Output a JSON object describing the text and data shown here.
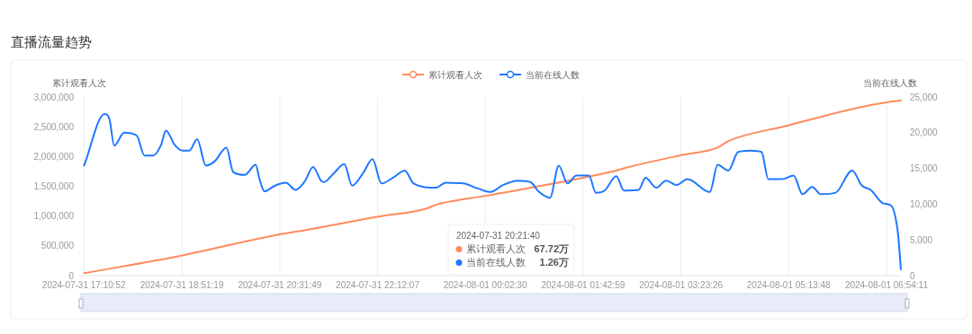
{
  "chart_data": {
    "type": "line",
    "title": "直播流量趋势",
    "ylabel": "累计观看人次",
    "y2label": "当前在线人数",
    "legend": "top",
    "grid": "x",
    "xlim": [
      "2024-07-31T17:06",
      "2024-08-01T07:09"
    ],
    "xticks": [
      {
        "value": "2024-07-31T17:10:52",
        "label": "2024-07-31 17:10:52"
      },
      {
        "value": "2024-07-31T18:51:19",
        "label": "2024-07-31 18:51:19"
      },
      {
        "value": "2024-07-31T20:31:49",
        "label": "2024-07-31 20:31:49"
      },
      {
        "value": "2024-07-31T22:12:07",
        "label": "2024-07-31 22:12:07"
      },
      {
        "value": "2024-08-01T00:02:30",
        "label": "2024-08-01 00:02:30"
      },
      {
        "value": "2024-08-01T01:42:59",
        "label": "2024-08-01 01:42:59"
      },
      {
        "value": "2024-08-01T03:23:26",
        "label": "2024-08-01 03:23:26"
      },
      {
        "value": "2024-08-01T05:13:48",
        "label": "2024-08-01 05:13:48"
      },
      {
        "value": "2024-08-01T06:54:11",
        "label": "2024-08-01 06:54:11"
      }
    ],
    "ylim": [
      0,
      3000000
    ],
    "yticks": [
      0,
      {
        "value": 500000,
        "label": "500,000"
      },
      {
        "value": 1000000,
        "label": "1,000,000"
      },
      {
        "value": 1500000,
        "label": "1,500,000"
      },
      {
        "value": 2000000,
        "label": "2,000,000"
      },
      {
        "value": 2500000,
        "label": "2,500,000"
      },
      {
        "value": 3000000,
        "label": "3,000,000"
      }
    ],
    "y2lim": [
      0,
      25000
    ],
    "y2ticks": [
      0,
      {
        "value": 5000,
        "label": "5,000"
      },
      {
        "value": 10000,
        "label": "10,000"
      },
      {
        "value": 15000,
        "label": "15,000"
      },
      {
        "value": 20000,
        "label": "20,000"
      },
      {
        "value": 25000,
        "label": "25,000"
      }
    ],
    "series": [
      {
        "name": "累计观看人次",
        "color": "#ff8a5c",
        "x": [
          "2024-07-31T17:11",
          "2024-07-31T18:52",
          "2024-07-31T20:27",
          "2024-07-31T20:57",
          "2024-07-31T22:13",
          "2024-07-31T23:01",
          "2024-07-31T23:14",
          "2024-08-01T00:03",
          "2024-08-01T02:11",
          "2024-08-01T02:29",
          "2024-08-01T03:23",
          "2024-08-01T04:01",
          "2024-08-01T04:12",
          "2024-08-01T05:13",
          "2024-08-01T06:20",
          "2024-08-01T06:54",
          "2024-08-01T07:09"
        ],
        "values": [
          40000,
          340000,
          680000,
          760000,
          990000,
          1120000,
          1200000,
          1340000,
          1740000,
          1820000,
          2020000,
          2150000,
          2260000,
          2520000,
          2800000,
          2910000,
          2940000
        ]
      },
      {
        "name": "当前在线人数",
        "color": "#1e78ff",
        "axis": "y2",
        "x": [
          "2024-07-31T17:11",
          "2024-07-31T17:32",
          "2024-07-31T17:37",
          "2024-07-31T17:42",
          "2024-07-31T17:52",
          "2024-07-31T18:05",
          "2024-07-31T18:13",
          "2024-07-31T18:22",
          "2024-07-31T18:30",
          "2024-07-31T18:35",
          "2024-07-31T18:44",
          "2024-07-31T18:52",
          "2024-07-31T18:59",
          "2024-07-31T19:07",
          "2024-07-31T19:16",
          "2024-07-31T19:25",
          "2024-07-31T19:37",
          "2024-07-31T19:44",
          "2024-07-31T19:56",
          "2024-07-31T20:07",
          "2024-07-31T20:11",
          "2024-07-31T20:16",
          "2024-07-31T20:27",
          "2024-07-31T20:38",
          "2024-07-31T20:48",
          "2024-07-31T20:57",
          "2024-07-31T21:06",
          "2024-07-31T21:14",
          "2024-07-31T21:17",
          "2024-07-31T21:27",
          "2024-07-31T21:38",
          "2024-07-31T21:46",
          "2024-07-31T21:57",
          "2024-07-31T22:07",
          "2024-07-31T22:16",
          "2024-07-31T22:28",
          "2024-07-31T22:40",
          "2024-07-31T22:49",
          "2024-07-31T23:12",
          "2024-07-31T23:22",
          "2024-07-31T23:40",
          "2024-07-31T23:55",
          "2024-08-01T00:08",
          "2024-08-01T00:21",
          "2024-08-01T00:36",
          "2024-08-01T00:49",
          "2024-08-01T00:57",
          "2024-08-01T01:09",
          "2024-08-01T01:18",
          "2024-08-01T01:27",
          "2024-08-01T01:36",
          "2024-08-01T01:49",
          "2024-08-01T01:56",
          "2024-08-01T02:05",
          "2024-08-01T02:17",
          "2024-08-01T02:25",
          "2024-08-01T02:40",
          "2024-08-01T02:47",
          "2024-08-01T02:58",
          "2024-08-01T03:08",
          "2024-08-01T03:19",
          "2024-08-01T03:30",
          "2024-08-01T03:53",
          "2024-08-01T04:01",
          "2024-08-01T04:12",
          "2024-08-01T04:22",
          "2024-08-01T04:35",
          "2024-08-01T04:46",
          "2024-08-01T04:53",
          "2024-08-01T05:07",
          "2024-08-01T05:19",
          "2024-08-01T05:28",
          "2024-08-01T05:38",
          "2024-08-01T05:47",
          "2024-08-01T06:02",
          "2024-08-01T06:19",
          "2024-08-01T06:29",
          "2024-08-01T06:38",
          "2024-08-01T06:51",
          "2024-08-01T06:59",
          "2024-08-01T07:06",
          "2024-08-01T07:09"
        ],
        "values": [
          15400,
          22600,
          21900,
          18200,
          20000,
          19600,
          16800,
          16800,
          18300,
          20300,
          18300,
          17500,
          17500,
          19100,
          15400,
          16000,
          17900,
          14500,
          14100,
          15500,
          13500,
          11800,
          12600,
          13000,
          12000,
          13100,
          15200,
          13300,
          13100,
          14300,
          15600,
          12600,
          14300,
          16300,
          12900,
          13700,
          14700,
          12900,
          12300,
          13000,
          12900,
          12200,
          11700,
          12700,
          13300,
          13100,
          11800,
          10900,
          15400,
          12900,
          14000,
          14000,
          11600,
          11900,
          13900,
          11900,
          12000,
          13700,
          12300,
          13300,
          12700,
          13500,
          11700,
          15500,
          14700,
          17300,
          17500,
          17300,
          13500,
          13500,
          14000,
          11400,
          12400,
          11400,
          11600,
          14700,
          12600,
          12000,
          10100,
          9800,
          5900,
          900
        ]
      }
    ],
    "annotations": [
      "2024-07-31 20:21:40",
      "累计观看人次",
      "67.72万",
      "当前在线人数",
      "1.26万"
    ]
  }
}
